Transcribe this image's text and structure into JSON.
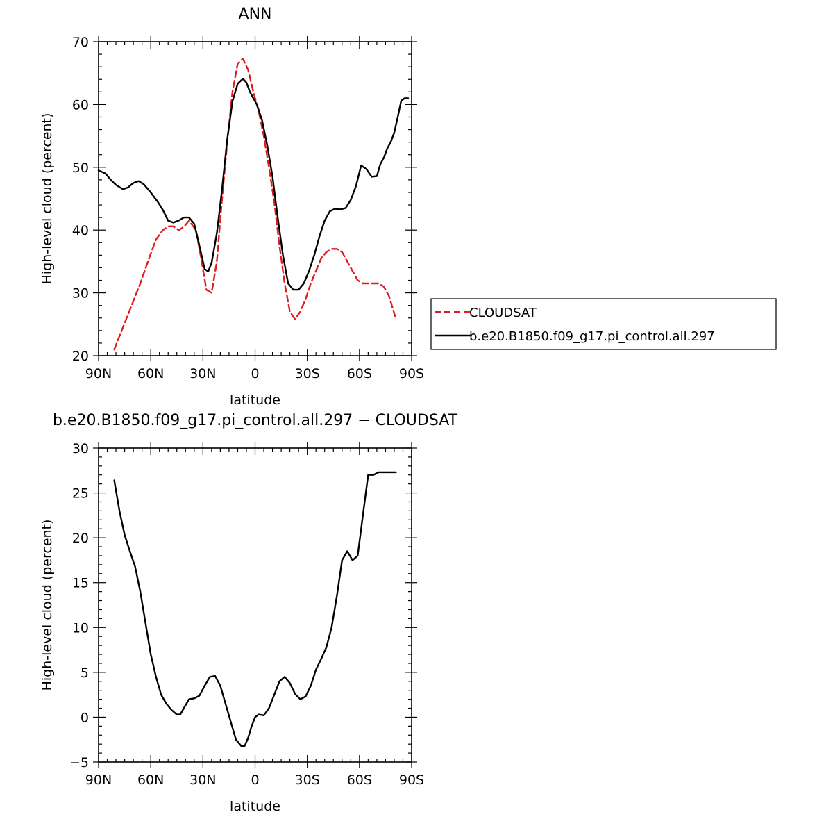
{
  "chart_data": [
    {
      "type": "line",
      "title": "ANN",
      "xlabel": "latitude",
      "ylabel": "High-level cloud (percent)",
      "xlim": [
        -90,
        90
      ],
      "ylim": [
        20,
        70
      ],
      "xticks": [
        -90,
        -60,
        -30,
        0,
        30,
        60,
        90
      ],
      "xtick_labels": [
        "90N",
        "60N",
        "30N",
        "0",
        "30S",
        "60S",
        "90S"
      ],
      "yticks": [
        20,
        30,
        40,
        50,
        60,
        70
      ],
      "ytick_labels": [
        "20",
        "30",
        "40",
        "50",
        "60",
        "70"
      ],
      "legend": "right, outside plot",
      "series": [
        {
          "name": "CLOUDSAT",
          "color": "#e31a1c",
          "style": "dashed",
          "x": [
            -81,
            -76,
            -71,
            -66,
            -61,
            -57,
            -53,
            -50,
            -47,
            -44,
            -41,
            -38,
            -34,
            -31,
            -28,
            -25,
            -22,
            -19,
            -16,
            -13,
            -10,
            -7,
            -4,
            -1,
            2,
            5,
            8,
            11,
            14,
            17,
            20,
            23,
            26,
            29,
            32,
            35,
            38,
            41,
            44,
            47,
            50,
            53,
            56,
            59,
            62,
            65,
            68,
            71,
            74,
            77,
            81
          ],
          "y": [
            21,
            24.5,
            28,
            31.5,
            35.5,
            38.5,
            40,
            40.6,
            40.6,
            40,
            40.5,
            41.5,
            40,
            35.5,
            30.5,
            30,
            35,
            45,
            54,
            62,
            66.5,
            67.3,
            65.5,
            62,
            59,
            55,
            50,
            44.5,
            37.5,
            31.5,
            27,
            25.8,
            27,
            29,
            31.5,
            33.5,
            35.5,
            36.5,
            37,
            37,
            36.5,
            35,
            33.5,
            32,
            31.5,
            31.5,
            31.5,
            31.5,
            31,
            29.5,
            25.8
          ]
        },
        {
          "name": "b.e20.B1850.f09_g17.pi_control.all.297",
          "color": "#000000",
          "style": "solid",
          "x": [
            -90,
            -86,
            -83,
            -80,
            -76,
            -73,
            -70,
            -67,
            -64,
            -60,
            -56,
            -53,
            -50,
            -47,
            -44,
            -41,
            -38,
            -35,
            -32,
            -29,
            -27,
            -25,
            -22,
            -19,
            -16,
            -13,
            -10,
            -7,
            -5,
            -3,
            -1,
            1,
            4,
            7,
            10,
            13,
            16,
            19,
            22,
            25,
            28,
            31,
            34,
            37,
            40,
            43,
            46,
            49,
            52,
            55,
            58,
            61,
            64,
            67,
            70,
            72,
            74,
            76,
            78,
            80,
            82,
            84,
            86,
            88
          ],
          "y": [
            49.5,
            49,
            48,
            47.2,
            46.5,
            46.8,
            47.5,
            47.8,
            47.3,
            46,
            44.5,
            43.2,
            41.5,
            41.2,
            41.5,
            42,
            42,
            41,
            37.5,
            33.8,
            33.4,
            34.8,
            39.5,
            46.5,
            54.5,
            60.5,
            63.3,
            64.1,
            63.5,
            62,
            61,
            60,
            57.5,
            53.5,
            48.5,
            42,
            36,
            31.5,
            30.5,
            30.5,
            31.5,
            33.5,
            36,
            39,
            41.5,
            43,
            43.4,
            43.3,
            43.5,
            44.8,
            47,
            50.3,
            49.7,
            48.5,
            48.6,
            50.5,
            51.5,
            53,
            54,
            55.5,
            58,
            60.6,
            61,
            61
          ]
        }
      ]
    },
    {
      "type": "line",
      "title": "b.e20.B1850.f09_g17.pi_control.all.297 − CLOUDSAT",
      "xlabel": "latitude",
      "ylabel": "High-level cloud (percent)",
      "xlim": [
        -90,
        90
      ],
      "ylim": [
        -5,
        30
      ],
      "xticks": [
        -90,
        -60,
        -30,
        0,
        30,
        60,
        90
      ],
      "xtick_labels": [
        "90N",
        "60N",
        "30N",
        "0",
        "30S",
        "60S",
        "90S"
      ],
      "yticks": [
        -5,
        0,
        5,
        10,
        15,
        20,
        25,
        30
      ],
      "ytick_labels": [
        "−5",
        "0",
        "5",
        "10",
        "15",
        "20",
        "25",
        "30"
      ],
      "series": [
        {
          "color": "#000000",
          "style": "solid",
          "x": [
            -81,
            -78,
            -75,
            -72,
            -69,
            -66,
            -63,
            -60,
            -57,
            -54,
            -51,
            -48,
            -45,
            -43,
            -41,
            -38,
            -35,
            -32,
            -29,
            -26,
            -23,
            -20,
            -17,
            -14,
            -11,
            -8,
            -6,
            -4,
            -2,
            0,
            2,
            5,
            8,
            11,
            14,
            17,
            20,
            23,
            26,
            29,
            32,
            35,
            38,
            41,
            44,
            47,
            50,
            53,
            56,
            59,
            62,
            65,
            68,
            71,
            74,
            77,
            80,
            81
          ],
          "y": [
            26.4,
            23,
            20.3,
            18.5,
            16.8,
            14,
            10.5,
            7,
            4.5,
            2.5,
            1.5,
            0.8,
            0.3,
            0.3,
            1,
            2,
            2.1,
            2.4,
            3.5,
            4.5,
            4.6,
            3.5,
            1.5,
            -0.5,
            -2.5,
            -3.2,
            -3.2,
            -2.3,
            -1,
            0,
            0.3,
            0.2,
            1,
            2.5,
            4,
            4.5,
            3.8,
            2.6,
            2,
            2.3,
            3.5,
            5.3,
            6.5,
            7.8,
            10,
            13.5,
            17.5,
            18.5,
            17.5,
            18,
            22.5,
            27,
            27,
            27.3,
            27.3,
            27.3,
            27.3,
            27.3
          ]
        }
      ]
    }
  ]
}
